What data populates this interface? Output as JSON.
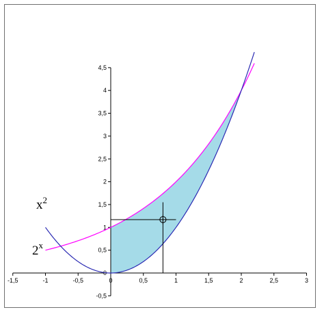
{
  "chart_data": {
    "type": "area",
    "title": "",
    "xlabel": "",
    "ylabel": "",
    "xlim": [
      -1.5,
      3
    ],
    "ylim": [
      -0.5,
      4.5
    ],
    "grid": false,
    "legend": "none",
    "x_ticks": [
      "-1,5",
      "-1",
      "-0,5",
      "0",
      "0,5",
      "1",
      "1,5",
      "2",
      "2,5",
      "3"
    ],
    "y_ticks": [
      "-0,5",
      "0",
      "0,5",
      "1",
      "1,5",
      "2",
      "2,5",
      "3",
      "3,5",
      "4",
      "4,5"
    ],
    "series": [
      {
        "label_base": "x",
        "label_exp": "2",
        "function": "x^2",
        "domain": [
          -1,
          2.2
        ],
        "color": "#2b2bb3"
      },
      {
        "label_base": "2",
        "label_exp": "x",
        "function": "2^x",
        "domain": [
          -1,
          2.2
        ],
        "color": "#ff00ff"
      }
    ],
    "shaded_region": {
      "between": [
        "2^x",
        "x^2"
      ],
      "x_range": [
        0,
        2
      ],
      "color": "#a5dbe8"
    },
    "marker": {
      "x": 0.8,
      "y": 1.17,
      "shape": "circle-crosshair"
    },
    "guide_lines": {
      "vertical_x": 0.8,
      "vertical_y_range": [
        0,
        1.55
      ],
      "horizontal_y": 1.17,
      "horizontal_x_range": [
        0,
        1.0
      ]
    }
  }
}
